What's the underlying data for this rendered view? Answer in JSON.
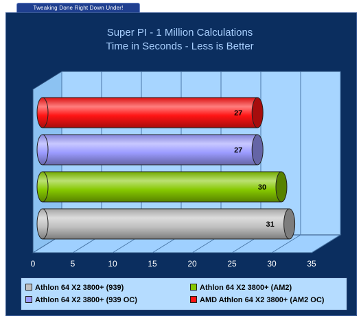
{
  "banner": {
    "text": "Tweaking Done Right Down Under!"
  },
  "chart_data": {
    "type": "bar",
    "orientation": "horizontal",
    "title": "Super PI - 1 Million Calculations",
    "subtitle": "Time in Seconds - Less is Better",
    "xlim": [
      0,
      35
    ],
    "xticks": [
      "0",
      "5",
      "10",
      "15",
      "20",
      "25",
      "30",
      "35"
    ],
    "grid": true,
    "legend_position": "bottom",
    "series": [
      {
        "name": "Athlon 64 X2 3800+ (939)",
        "value": 31,
        "color": "#c0c0c0"
      },
      {
        "name": "Athlon 64 X2 3800+ (AM2)",
        "value": 30,
        "color": "#86c800"
      },
      {
        "name": "Athlon 64 X2 3800+ (939 OC)",
        "value": 27,
        "color": "#9b9bff"
      },
      {
        "name": "AMD Athlon 64 X2 3800+ (AM2 OC)",
        "value": 27,
        "color": "#ff1414"
      }
    ]
  }
}
